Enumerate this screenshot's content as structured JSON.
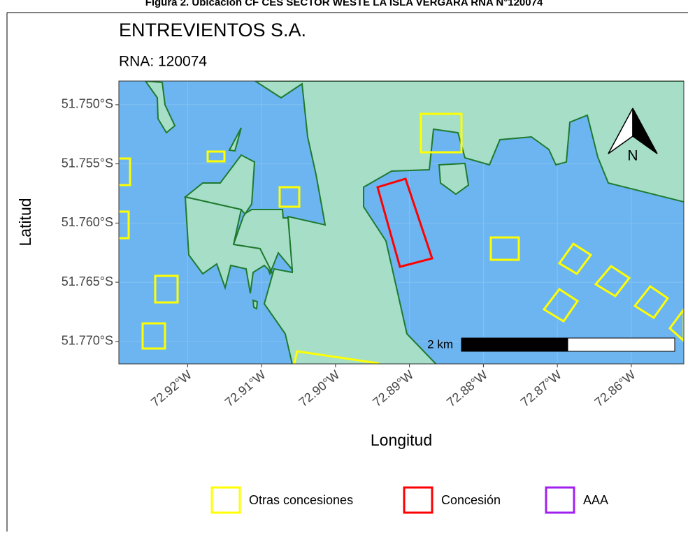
{
  "figure_caption": "Figura 2. Ubicación CF CES SECTOR WESTE LA ISLA VERGARA RNA N°120074",
  "map": {
    "title": "ENTREVIENTOS S.A.",
    "subtitle": "RNA: 120074",
    "x_label": "Longitud",
    "y_label": "Latitud",
    "xlim": [
      -72.9293,
      -72.8529
    ],
    "ylim": [
      -51.7719,
      -51.748
    ],
    "xticks": [
      {
        "value": -72.92,
        "label": "72.92°W"
      },
      {
        "value": -72.91,
        "label": "72.91°W"
      },
      {
        "value": -72.9,
        "label": "72.90°W"
      },
      {
        "value": -72.89,
        "label": "72.89°W"
      },
      {
        "value": -72.88,
        "label": "72.88°W"
      },
      {
        "value": -72.87,
        "label": "72.87°W"
      },
      {
        "value": -72.86,
        "label": "72.86°W"
      }
    ],
    "yticks": [
      {
        "value": -51.75,
        "label": "51.750°S"
      },
      {
        "value": -51.755,
        "label": "51.755°S"
      },
      {
        "value": -51.76,
        "label": "51.760°S"
      },
      {
        "value": -51.765,
        "label": "51.765°S"
      },
      {
        "value": -51.77,
        "label": "51.770°S"
      }
    ],
    "scale_bar": "2 km",
    "north": "N",
    "legend": [
      {
        "name": "Otras concesiones",
        "color": "#ffff00"
      },
      {
        "name": "Concesión",
        "color": "#ff0000"
      },
      {
        "name": "AAA",
        "color": "#a020f0"
      }
    ]
  }
}
